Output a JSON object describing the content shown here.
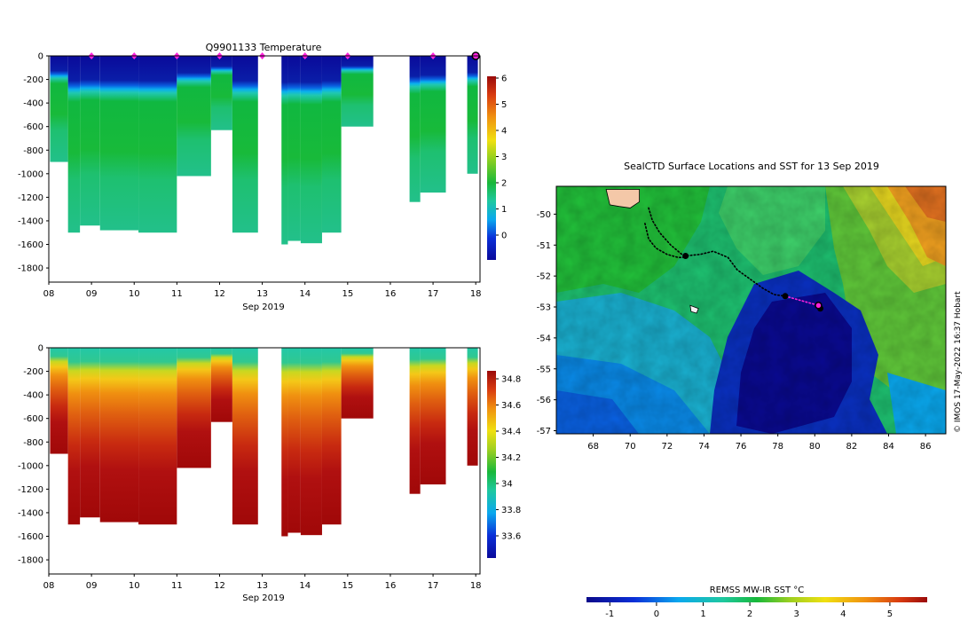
{
  "title_top": "Q9901133  Temperature",
  "time_axis": {
    "ticks": [
      "08",
      "09",
      "10",
      "11",
      "12",
      "13",
      "14",
      "15",
      "16",
      "17",
      "18"
    ],
    "xlabel": "Sep 2019"
  },
  "depth_axis": {
    "ticks": [
      "0",
      "-200",
      "-400",
      "-600",
      "-800",
      "-1000",
      "-1200",
      "-1400",
      "-1600",
      "-1800"
    ]
  },
  "profiles": {
    "columns": [
      {
        "start": 8.03,
        "end": 8.45,
        "depth": 900
      },
      {
        "start": 8.45,
        "end": 8.73,
        "depth": 1500
      },
      {
        "start": 8.73,
        "end": 9.2,
        "depth": 1440
      },
      {
        "start": 9.2,
        "end": 10.1,
        "depth": 1480
      },
      {
        "start": 10.1,
        "end": 11.0,
        "depth": 1500
      },
      {
        "start": 11.0,
        "end": 11.8,
        "depth": 1020
      },
      {
        "start": 11.8,
        "end": 12.3,
        "depth": 630
      },
      {
        "start": 12.3,
        "end": 12.9,
        "depth": 1500
      },
      {
        "start": 13.45,
        "end": 13.6,
        "depth": 1600
      },
      {
        "start": 13.6,
        "end": 13.9,
        "depth": 1570
      },
      {
        "start": 13.9,
        "end": 14.4,
        "depth": 1590
      },
      {
        "start": 14.4,
        "end": 14.85,
        "depth": 1500
      },
      {
        "start": 14.85,
        "end": 15.6,
        "depth": 600
      },
      {
        "start": 16.45,
        "end": 16.7,
        "depth": 1240
      },
      {
        "start": 16.7,
        "end": 17.3,
        "depth": 1160
      },
      {
        "start": 17.8,
        "end": 18.05,
        "depth": 1000
      }
    ],
    "markers": [
      9.0,
      10.0,
      11.0,
      12.0,
      13.0,
      14.0,
      15.0,
      17.0,
      18.0
    ]
  },
  "temp_colorbar": {
    "ticks": [
      "6",
      "5",
      "4",
      "3",
      "2",
      "1",
      "0"
    ]
  },
  "sal_colorbar": {
    "ticks": [
      "34.8",
      "34.6",
      "34.4",
      "34.2",
      "34",
      "33.8",
      "33.6"
    ]
  },
  "map": {
    "title": "SealCTD Surface Locations and SST for 13 Sep 2019",
    "lon_ticks": [
      "68",
      "70",
      "72",
      "74",
      "76",
      "78",
      "80",
      "82",
      "84",
      "86"
    ],
    "lat_ticks": [
      "-50",
      "-51",
      "-52",
      "-53",
      "-54",
      "-55",
      "-56",
      "-57"
    ],
    "credit": "© IMOS 17-May-2022 16:37 Hobart",
    "track": [
      [
        71.0,
        -49.8
      ],
      [
        71.2,
        -50.2
      ],
      [
        71.6,
        -50.6
      ],
      [
        72.2,
        -51.0
      ],
      [
        72.8,
        -51.3
      ],
      [
        73.0,
        -51.35
      ],
      [
        73.8,
        -51.3
      ],
      [
        74.5,
        -51.2
      ],
      [
        75.3,
        -51.4
      ],
      [
        75.8,
        -51.8
      ],
      [
        76.5,
        -52.1
      ],
      [
        77.2,
        -52.4
      ],
      [
        77.8,
        -52.6
      ],
      [
        78.4,
        -52.65
      ]
    ],
    "track_pink": [
      [
        78.4,
        -52.65
      ],
      [
        79.0,
        -52.75
      ],
      [
        79.6,
        -52.85
      ],
      [
        80.2,
        -52.95
      ]
    ],
    "track_alt": [
      [
        70.8,
        -50.3
      ],
      [
        71.0,
        -50.8
      ],
      [
        71.4,
        -51.1
      ],
      [
        72.0,
        -51.3
      ],
      [
        72.6,
        -51.4
      ],
      [
        73.0,
        -51.4
      ]
    ],
    "points": [
      [
        73.0,
        -51.35
      ],
      [
        78.4,
        -52.65
      ],
      [
        80.3,
        -53.05
      ]
    ],
    "current": [
      80.2,
      -52.95
    ],
    "land": [
      {
        "name": "kerguelen",
        "poly": [
          [
            68.7,
            -49.2
          ],
          [
            70.5,
            -49.2
          ],
          [
            70.5,
            -49.6
          ],
          [
            70.0,
            -49.8
          ],
          [
            69.4,
            -49.75
          ],
          [
            68.9,
            -49.7
          ]
        ]
      },
      {
        "name": "heard",
        "poly": [
          [
            73.25,
            -52.95
          ],
          [
            73.7,
            -53.05
          ],
          [
            73.6,
            -53.2
          ],
          [
            73.3,
            -53.15
          ]
        ]
      }
    ]
  },
  "sst_colorbar": {
    "label": "REMSS MW-IR SST °C",
    "ticks": [
      "-1",
      "0",
      "1",
      "2",
      "3",
      "4",
      "5"
    ]
  }
}
